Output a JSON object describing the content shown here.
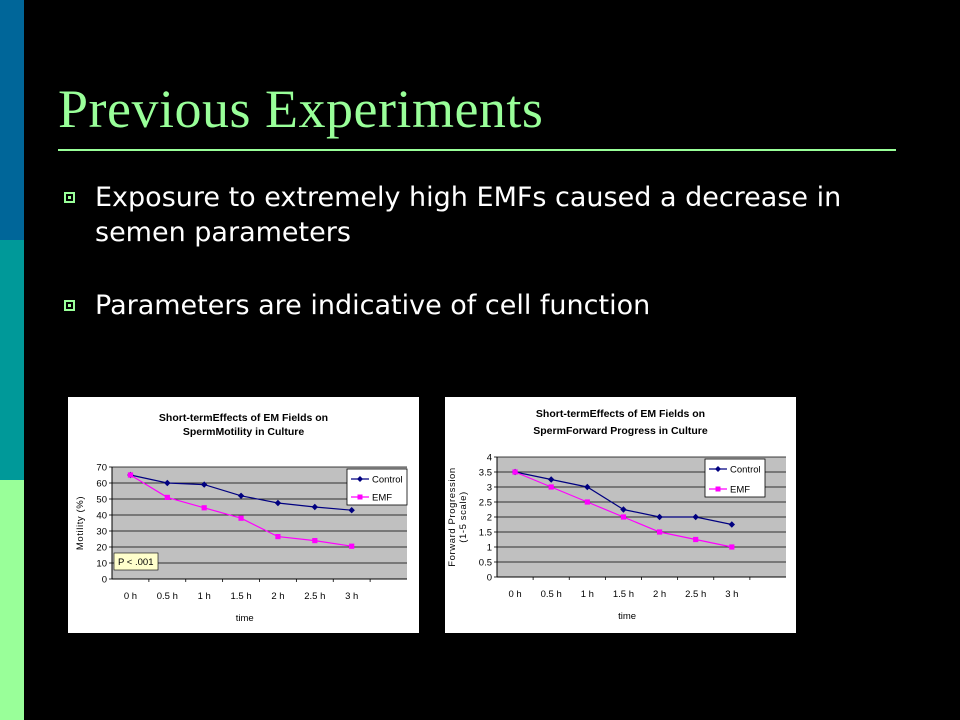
{
  "slide": {
    "title": "Previous Experiments",
    "bullets": [
      "Exposure to extremely high EMFs caused a decrease in semen parameters",
      "Parameters are indicative of cell function"
    ],
    "colors": {
      "background": "#000000",
      "accent": "#99FF99",
      "sidebar": [
        "#006699",
        "#009999",
        "#99FF99"
      ],
      "text": "#FFFFFF",
      "control_series": "#000080",
      "emf_series": "#FF00FF",
      "plot_area": "#C0C0C0"
    },
    "bullet_icon": "square-bullet-icon"
  },
  "chart_data": [
    {
      "type": "line",
      "title": [
        "Short-termEffects of EM Fields on",
        "SpermMotility in Culture"
      ],
      "xlabel": "time",
      "ylabel": "Motility (%)",
      "categories": [
        "0 h",
        "0.5 h",
        "1 h",
        "1.5 h",
        "2 h",
        "2.5 h",
        "3 h"
      ],
      "ylim": [
        0,
        70
      ],
      "yticks": [
        0,
        10,
        20,
        30,
        40,
        50,
        60,
        70
      ],
      "ytick_labels": [
        "0",
        "10",
        "20",
        "30",
        "40",
        "50",
        "60",
        "70"
      ],
      "series": [
        {
          "name": "Control",
          "values": [
            65,
            60,
            59,
            52,
            47.5,
            45,
            43
          ],
          "color": "#000080",
          "marker": "diamond"
        },
        {
          "name": "EMF",
          "values": [
            65,
            51,
            44.5,
            38,
            26.5,
            24,
            20.5
          ],
          "color": "#FF00FF",
          "marker": "square"
        }
      ],
      "annotation": "P < .001",
      "grid": true,
      "legend": "right"
    },
    {
      "type": "line",
      "title": [
        "Short-termEffects of EM Fields on",
        "SpermForward Progress in Culture"
      ],
      "xlabel": "time",
      "ylabel": [
        "Forward Progression",
        "(1-5 scale)"
      ],
      "categories": [
        "0 h",
        "0.5 h",
        "1 h",
        "1.5 h",
        "2 h",
        "2.5 h",
        "3 h"
      ],
      "ylim": [
        0,
        4
      ],
      "yticks": [
        0,
        0.5,
        1,
        1.5,
        2,
        2.5,
        3,
        3.5,
        4
      ],
      "ytick_labels": [
        "0",
        "0.5",
        "1",
        "1.5",
        "2",
        "2.5",
        "3",
        "3.5",
        "4"
      ],
      "series": [
        {
          "name": "Control",
          "values": [
            3.5,
            3.25,
            3.0,
            2.25,
            2.0,
            2.0,
            1.75
          ],
          "color": "#000080",
          "marker": "diamond"
        },
        {
          "name": "EMF",
          "values": [
            3.5,
            3.0,
            2.5,
            2.0,
            1.5,
            1.25,
            1.0
          ],
          "color": "#FF00FF",
          "marker": "square"
        }
      ],
      "grid": true,
      "legend": "right"
    }
  ]
}
